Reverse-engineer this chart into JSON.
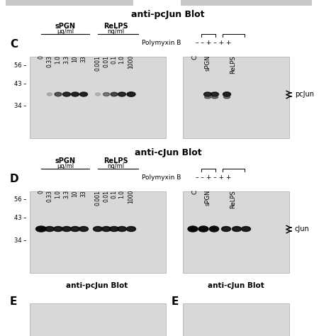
{
  "title_top": "anti-pcJun Blot",
  "title_mid": "anti-cJun Blot",
  "label_C": "C",
  "label_D": "D",
  "label_E": "E",
  "label_E_left": "anti-pcJun Blot",
  "label_E_right": "anti-cJun Blot",
  "figure_bg": "#ffffff",
  "gel_bg": "#d8d8d8",
  "text_color": "#000000",
  "sPGN_labels": [
    "0",
    "0.33",
    "1.0",
    "3.3",
    "10",
    "33"
  ],
  "ReLPS_labels": [
    "0.001",
    "0.01",
    "0.1",
    "1.0",
    "1000"
  ],
  "mw_markers_labels": [
    "56 –",
    "43 –",
    "34 –"
  ],
  "polymyxin_B_line": "– – + – + +",
  "pcJun_label": "pcJun",
  "cJun_label": "cJun",
  "gray_bar_color": "#c8c8c8"
}
